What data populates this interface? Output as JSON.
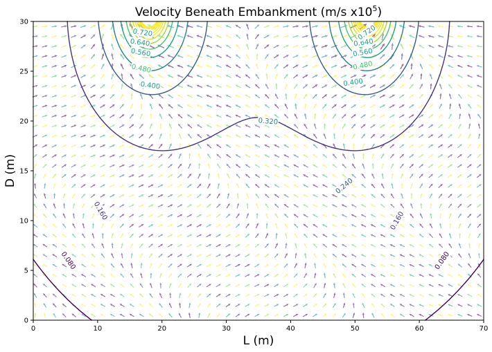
{
  "chart_data": {
    "type": "contour",
    "title": "Velocity Beneath Embankment (m/s x10",
    "title_exponent": "5",
    "title_suffix": ")",
    "xlabel": "L (m)",
    "ylabel": "D (m)",
    "xlim": [
      0,
      70
    ],
    "ylim": [
      0,
      30
    ],
    "x_ticks": [
      0,
      10,
      20,
      30,
      40,
      50,
      60,
      70
    ],
    "y_ticks": [
      0,
      5,
      10,
      15,
      20,
      25,
      30
    ],
    "x_tick_labels": [
      "0",
      "10",
      "20",
      "30",
      "40",
      "50",
      "60",
      "70"
    ],
    "y_tick_labels": [
      "0",
      "5",
      "10",
      "15",
      "20",
      "25",
      "30"
    ],
    "grid": false,
    "colormap": "viridis",
    "sources_x": [
      18,
      52
    ],
    "contour_levels": [
      {
        "level": "0.080",
        "color": "#440154"
      },
      {
        "level": "0.160",
        "color": "#46327e"
      },
      {
        "level": "0.240",
        "color": "#365c8d"
      },
      {
        "level": "0.320",
        "color": "#277f8e"
      },
      {
        "level": "0.400",
        "color": "#1fa187"
      },
      {
        "level": "0.480",
        "color": "#4ac16d"
      },
      {
        "level": "0.560",
        "color": "#a0da39"
      },
      {
        "level": "0.640",
        "color": "#d6e31e"
      },
      {
        "level": "0.720",
        "color": "#fde725"
      }
    ],
    "contour_labels": [
      {
        "text": "0.080",
        "x": 5.5,
        "y": 6.0,
        "angle": 55,
        "color": "#440154"
      },
      {
        "text": "0.080",
        "x": 63.5,
        "y": 6.0,
        "angle": -55,
        "color": "#440154"
      },
      {
        "text": "0.160",
        "x": 10.5,
        "y": 11.0,
        "angle": 60,
        "color": "#46327e"
      },
      {
        "text": "0.160",
        "x": 56.5,
        "y": 10.0,
        "angle": -60,
        "color": "#46327e"
      },
      {
        "text": "0.240",
        "x": 48.3,
        "y": 13.5,
        "angle": -40,
        "color": "#365c8d"
      },
      {
        "text": "0.320",
        "x": 36.5,
        "y": 20.0,
        "angle": 5,
        "color": "#277f8e"
      },
      {
        "text": "0.400",
        "x": 18.2,
        "y": 23.6,
        "angle": 8,
        "color": "#1fa187"
      },
      {
        "text": "0.400",
        "x": 49.7,
        "y": 23.9,
        "angle": -8,
        "color": "#1fa187"
      },
      {
        "text": "0.480",
        "x": 16.8,
        "y": 25.3,
        "angle": 12,
        "color": "#4ac16d"
      },
      {
        "text": "0.480",
        "x": 51.2,
        "y": 25.6,
        "angle": -12,
        "color": "#4ac16d"
      },
      {
        "text": "0.560",
        "x": 16.7,
        "y": 26.9,
        "angle": 10,
        "color": "#1fa187"
      },
      {
        "text": "0.560",
        "x": 51.2,
        "y": 26.9,
        "angle": -10,
        "color": "#1fa187"
      },
      {
        "text": "0.640",
        "x": 16.6,
        "y": 27.9,
        "angle": 8,
        "color": "#1fa187"
      },
      {
        "text": "0.640",
        "x": 51.3,
        "y": 27.9,
        "angle": -8,
        "color": "#1fa187"
      },
      {
        "text": "0.720",
        "x": 17.0,
        "y": 28.9,
        "angle": 8,
        "color": "#1fa187"
      },
      {
        "text": "0.720",
        "x": 51.8,
        "y": 28.9,
        "angle": -35,
        "color": "#1fa187"
      }
    ]
  }
}
